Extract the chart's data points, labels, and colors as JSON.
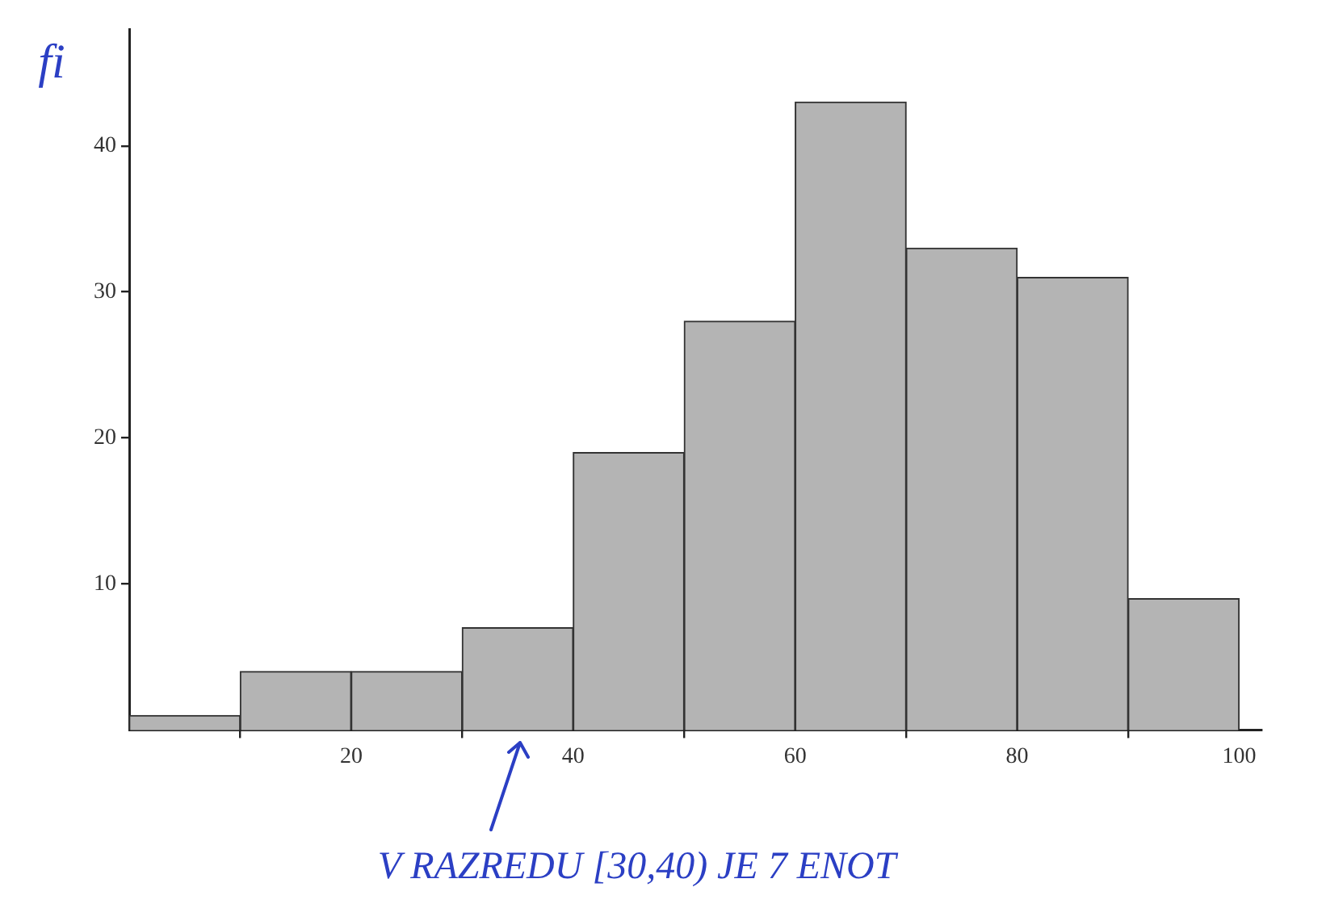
{
  "chart_data": {
    "type": "histogram",
    "ylabel": "fi",
    "bins": [
      0,
      10,
      20,
      30,
      40,
      50,
      60,
      70,
      80,
      90,
      100
    ],
    "values": [
      1,
      4,
      4,
      7,
      19,
      28,
      43,
      33,
      31,
      9
    ],
    "color": "#b4b4b4",
    "xlim": [
      0,
      102
    ],
    "xticks": [
      20,
      40,
      60,
      80,
      100
    ],
    "ylim": [
      0,
      48
    ],
    "yticks": [
      10,
      20,
      30,
      40
    ],
    "annotations": [
      "V RAZREDU [30,40) JE 7 ENOT"
    ]
  }
}
